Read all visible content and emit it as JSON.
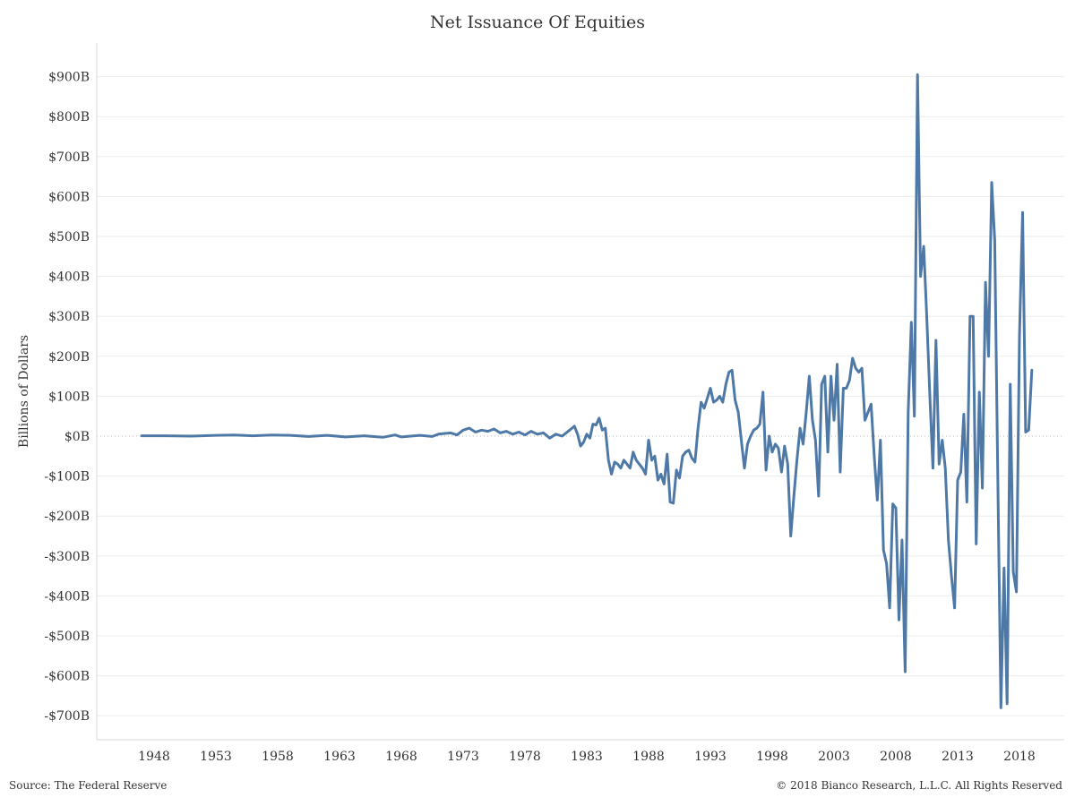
{
  "chart_data": {
    "type": "line",
    "title": "Net Issuance Of Equities",
    "ylabel": "Billions of Dollars",
    "xlabel": "",
    "xlim": [
      1945.0,
      2021.5
    ],
    "ylim": [
      -750,
      950
    ],
    "yticks": [
      {
        "value": 900,
        "label": "$900B"
      },
      {
        "value": 800,
        "label": "$800B"
      },
      {
        "value": 700,
        "label": "$700B"
      },
      {
        "value": 600,
        "label": "$600B"
      },
      {
        "value": 500,
        "label": "$500B"
      },
      {
        "value": 400,
        "label": "$400B"
      },
      {
        "value": 300,
        "label": "$300B"
      },
      {
        "value": 200,
        "label": "$200B"
      },
      {
        "value": 100,
        "label": "$100B"
      },
      {
        "value": 0,
        "label": "$0B"
      },
      {
        "value": -100,
        "label": "-$100B"
      },
      {
        "value": -200,
        "label": "-$200B"
      },
      {
        "value": -300,
        "label": "-$300B"
      },
      {
        "value": -400,
        "label": "-$400B"
      },
      {
        "value": -500,
        "label": "-$500B"
      },
      {
        "value": -600,
        "label": "-$600B"
      },
      {
        "value": -700,
        "label": "-$700B"
      }
    ],
    "xticks": [
      {
        "value": 1948,
        "label": "1948"
      },
      {
        "value": 1953,
        "label": "1953"
      },
      {
        "value": 1958,
        "label": "1958"
      },
      {
        "value": 1963,
        "label": "1963"
      },
      {
        "value": 1968,
        "label": "1968"
      },
      {
        "value": 1973,
        "label": "1973"
      },
      {
        "value": 1978,
        "label": "1978"
      },
      {
        "value": 1983,
        "label": "1983"
      },
      {
        "value": 1988,
        "label": "1988"
      },
      {
        "value": 1993,
        "label": "1993"
      },
      {
        "value": 1998,
        "label": "1998"
      },
      {
        "value": 2003,
        "label": "2003"
      },
      {
        "value": 2008,
        "label": "2008"
      },
      {
        "value": 2013,
        "label": "2013"
      },
      {
        "value": 2018,
        "label": "2018"
      }
    ],
    "grid": true,
    "zero_line": "dotted",
    "series": [
      {
        "name": "",
        "color": "#4e79a7",
        "points": [
          [
            1947.0,
            1
          ],
          [
            1949.0,
            1
          ],
          [
            1951.0,
            0
          ],
          [
            1953.0,
            2
          ],
          [
            1954.5,
            3
          ],
          [
            1956.0,
            1
          ],
          [
            1957.5,
            3
          ],
          [
            1959.0,
            2
          ],
          [
            1960.5,
            -1
          ],
          [
            1962.0,
            2
          ],
          [
            1963.5,
            -2
          ],
          [
            1965.0,
            1
          ],
          [
            1966.5,
            -3
          ],
          [
            1967.5,
            3
          ],
          [
            1968.0,
            -2
          ],
          [
            1969.5,
            2
          ],
          [
            1970.5,
            -1
          ],
          [
            1971.0,
            5
          ],
          [
            1972.0,
            8
          ],
          [
            1972.5,
            3
          ],
          [
            1973.0,
            15
          ],
          [
            1973.5,
            20
          ],
          [
            1974.0,
            10
          ],
          [
            1974.5,
            15
          ],
          [
            1975.0,
            12
          ],
          [
            1975.5,
            18
          ],
          [
            1976.0,
            8
          ],
          [
            1976.5,
            12
          ],
          [
            1977.0,
            5
          ],
          [
            1977.5,
            10
          ],
          [
            1978.0,
            3
          ],
          [
            1978.5,
            12
          ],
          [
            1979.0,
            5
          ],
          [
            1979.5,
            8
          ],
          [
            1980.0,
            -5
          ],
          [
            1980.5,
            5
          ],
          [
            1981.0,
            0
          ],
          [
            1981.5,
            12
          ],
          [
            1982.0,
            25
          ],
          [
            1982.25,
            5
          ],
          [
            1982.5,
            -25
          ],
          [
            1982.75,
            -15
          ],
          [
            1983.0,
            5
          ],
          [
            1983.25,
            -5
          ],
          [
            1983.5,
            30
          ],
          [
            1983.75,
            28
          ],
          [
            1984.0,
            45
          ],
          [
            1984.25,
            15
          ],
          [
            1984.5,
            20
          ],
          [
            1984.75,
            -60
          ],
          [
            1985.0,
            -95
          ],
          [
            1985.25,
            -65
          ],
          [
            1985.5,
            -70
          ],
          [
            1985.75,
            -80
          ],
          [
            1986.0,
            -60
          ],
          [
            1986.25,
            -70
          ],
          [
            1986.5,
            -80
          ],
          [
            1986.75,
            -40
          ],
          [
            1987.0,
            -60
          ],
          [
            1987.25,
            -70
          ],
          [
            1987.5,
            -80
          ],
          [
            1987.75,
            -95
          ],
          [
            1988.0,
            -10
          ],
          [
            1988.25,
            -60
          ],
          [
            1988.5,
            -50
          ],
          [
            1988.75,
            -110
          ],
          [
            1989.0,
            -95
          ],
          [
            1989.25,
            -120
          ],
          [
            1989.5,
            -45
          ],
          [
            1989.75,
            -165
          ],
          [
            1990.0,
            -168
          ],
          [
            1990.25,
            -85
          ],
          [
            1990.5,
            -105
          ],
          [
            1990.75,
            -50
          ],
          [
            1991.0,
            -40
          ],
          [
            1991.25,
            -35
          ],
          [
            1991.5,
            -55
          ],
          [
            1991.75,
            -65
          ],
          [
            1992.0,
            20
          ],
          [
            1992.25,
            85
          ],
          [
            1992.5,
            70
          ],
          [
            1992.75,
            95
          ],
          [
            1993.0,
            120
          ],
          [
            1993.25,
            85
          ],
          [
            1993.5,
            90
          ],
          [
            1993.75,
            100
          ],
          [
            1994.0,
            85
          ],
          [
            1994.25,
            130
          ],
          [
            1994.5,
            160
          ],
          [
            1994.75,
            165
          ],
          [
            1995.0,
            90
          ],
          [
            1995.25,
            60
          ],
          [
            1995.5,
            -10
          ],
          [
            1995.75,
            -80
          ],
          [
            1996.0,
            -20
          ],
          [
            1996.25,
            0
          ],
          [
            1996.5,
            15
          ],
          [
            1996.75,
            20
          ],
          [
            1997.0,
            30
          ],
          [
            1997.25,
            110
          ],
          [
            1997.5,
            -85
          ],
          [
            1997.75,
            0
          ],
          [
            1998.0,
            -40
          ],
          [
            1998.25,
            -20
          ],
          [
            1998.5,
            -30
          ],
          [
            1998.75,
            -90
          ],
          [
            1999.0,
            -25
          ],
          [
            1999.25,
            -70
          ],
          [
            1999.5,
            -250
          ],
          [
            1999.75,
            -150
          ],
          [
            2000.0,
            -60
          ],
          [
            2000.25,
            20
          ],
          [
            2000.5,
            -20
          ],
          [
            2000.75,
            60
          ],
          [
            2001.0,
            150
          ],
          [
            2001.25,
            40
          ],
          [
            2001.5,
            -10
          ],
          [
            2001.75,
            -150
          ],
          [
            2002.0,
            130
          ],
          [
            2002.25,
            150
          ],
          [
            2002.5,
            -40
          ],
          [
            2002.75,
            150
          ],
          [
            2003.0,
            40
          ],
          [
            2003.25,
            180
          ],
          [
            2003.5,
            -90
          ],
          [
            2003.75,
            120
          ],
          [
            2004.0,
            120
          ],
          [
            2004.25,
            140
          ],
          [
            2004.5,
            195
          ],
          [
            2004.75,
            170
          ],
          [
            2005.0,
            160
          ],
          [
            2005.25,
            170
          ],
          [
            2005.5,
            40
          ],
          [
            2005.75,
            60
          ],
          [
            2006.0,
            80
          ],
          [
            2006.25,
            -50
          ],
          [
            2006.5,
            -160
          ],
          [
            2006.75,
            -10
          ],
          [
            2007.0,
            -285
          ],
          [
            2007.25,
            -320
          ],
          [
            2007.5,
            -430
          ],
          [
            2007.75,
            -170
          ],
          [
            2008.0,
            -180
          ],
          [
            2008.25,
            -460
          ],
          [
            2008.5,
            -260
          ],
          [
            2008.75,
            -590
          ],
          [
            2009.0,
            60
          ],
          [
            2009.25,
            285
          ],
          [
            2009.5,
            50
          ],
          [
            2009.75,
            905
          ],
          [
            2010.0,
            400
          ],
          [
            2010.25,
            475
          ],
          [
            2010.5,
            300
          ],
          [
            2010.75,
            100
          ],
          [
            2011.0,
            -80
          ],
          [
            2011.25,
            240
          ],
          [
            2011.5,
            -70
          ],
          [
            2011.75,
            -10
          ],
          [
            2012.0,
            -80
          ],
          [
            2012.25,
            -260
          ],
          [
            2012.5,
            -350
          ],
          [
            2012.75,
            -430
          ],
          [
            2013.0,
            -110
          ],
          [
            2013.25,
            -90
          ],
          [
            2013.5,
            55
          ],
          [
            2013.75,
            -165
          ],
          [
            2014.0,
            300
          ],
          [
            2014.25,
            300
          ],
          [
            2014.5,
            -270
          ],
          [
            2014.75,
            110
          ],
          [
            2015.0,
            -130
          ],
          [
            2015.25,
            385
          ],
          [
            2015.5,
            200
          ],
          [
            2015.75,
            635
          ],
          [
            2016.0,
            490
          ],
          [
            2016.25,
            -100
          ],
          [
            2016.5,
            -680
          ],
          [
            2016.75,
            -330
          ],
          [
            2017.0,
            -670
          ],
          [
            2017.25,
            130
          ],
          [
            2017.5,
            -340
          ],
          [
            2017.75,
            -390
          ],
          [
            2018.0,
            250
          ],
          [
            2018.25,
            560
          ],
          [
            2018.5,
            10
          ],
          [
            2018.75,
            15
          ],
          [
            2019.0,
            165
          ]
        ]
      }
    ]
  },
  "footer": {
    "source": "Source: The Federal Reserve",
    "copyright": "© 2018 Bianco Research, L.L.C. All Rights Reserved"
  }
}
